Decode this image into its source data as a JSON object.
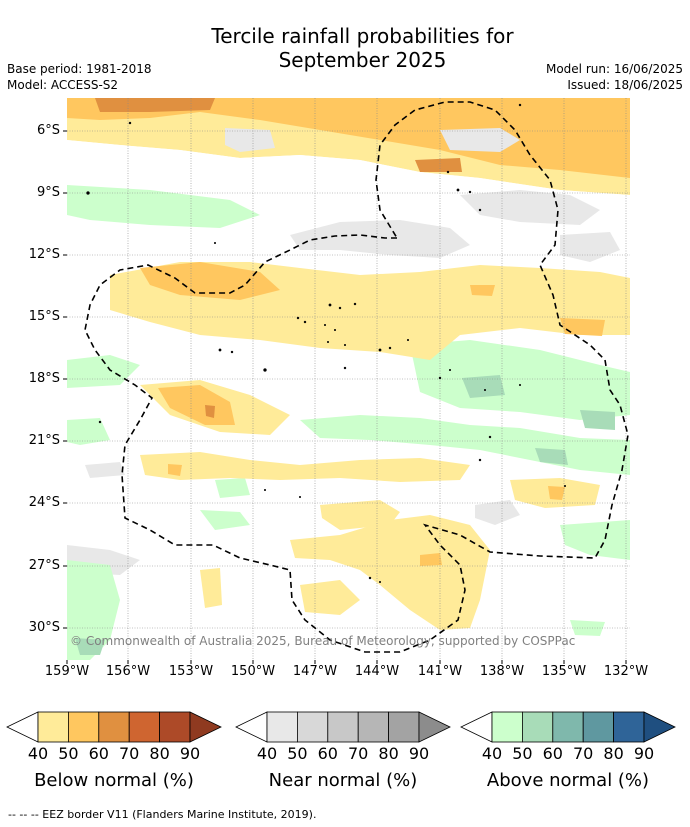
{
  "header": {
    "title_line1": "Tercile rainfall probabilities for",
    "title_line2": "September 2025",
    "base_period": "Base period: 1981-2018",
    "model": "Model: ACCESS-S2",
    "model_run": "Model run: 16/06/2025",
    "issued": "Issued: 18/06/2025"
  },
  "map": {
    "lat_labels": [
      "6°S",
      "9°S",
      "12°S",
      "15°S",
      "18°S",
      "21°S",
      "24°S",
      "27°S",
      "30°S"
    ],
    "lon_labels": [
      "159°W",
      "156°W",
      "153°W",
      "150°W",
      "147°W",
      "144°W",
      "141°W",
      "138°W",
      "135°W",
      "132°W"
    ],
    "copyright": "© Commonwealth of Australia 2025, Bureau of Meteorology, supported by COSPPac"
  },
  "colorbars": [
    {
      "title": "Below normal (%)",
      "ticks": [
        "40",
        "50",
        "60",
        "70",
        "80",
        "90"
      ],
      "colors": [
        "#ffeb99",
        "#ffc75f",
        "#e09040",
        "#cf6530",
        "#ad4a28",
        "#8f3a20"
      ]
    },
    {
      "title": "Near normal (%)",
      "ticks": [
        "40",
        "50",
        "60",
        "70",
        "80",
        "90"
      ],
      "colors": [
        "#e8e8e8",
        "#d8d8d8",
        "#c8c8c8",
        "#b6b6b6",
        "#a3a3a3",
        "#8c8c8c"
      ]
    },
    {
      "title": "Above normal (%)",
      "ticks": [
        "40",
        "50",
        "60",
        "70",
        "80",
        "90"
      ],
      "colors": [
        "#ccffcc",
        "#a8dcb8",
        "#7fb8ac",
        "#5f98a0",
        "#2f6498",
        "#1f4f80"
      ]
    }
  ],
  "footer": {
    "eez_note": "--  --  -- EEZ border V11 (Flanders Marine Institute, 2019)."
  }
}
